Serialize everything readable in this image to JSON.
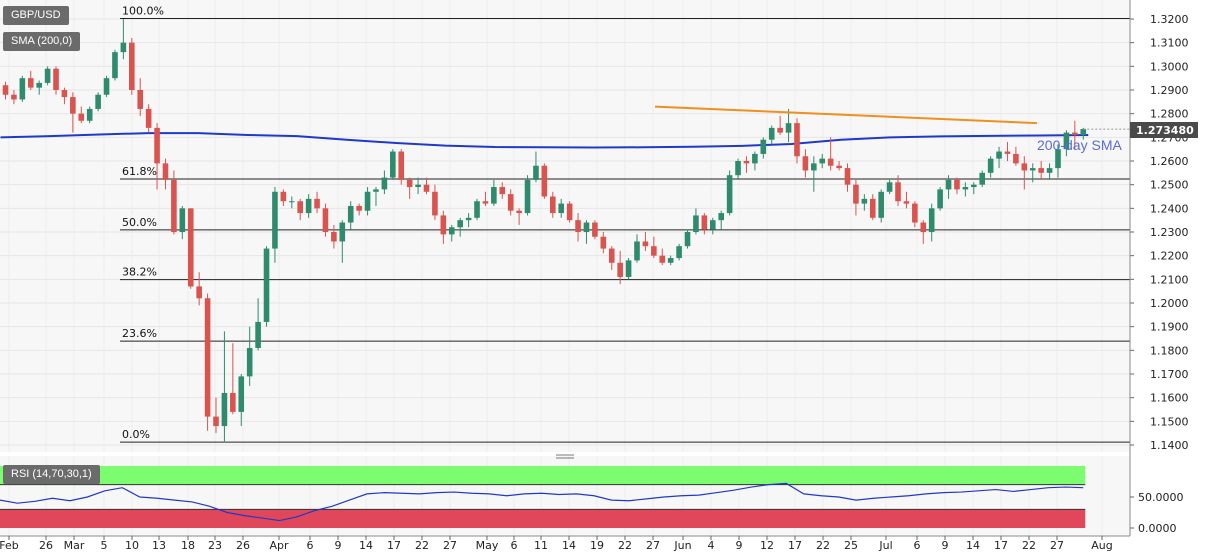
{
  "tags": {
    "symbol": "GBP/USD",
    "indicator": "SMA (200,0)",
    "rsi": "RSI (14,70,30,1)"
  },
  "sma_label": "200-day SMA",
  "price_tag": "1.273480",
  "colors": {
    "up": "#2e8b6e",
    "down": "#d9534f",
    "sma": "#2039c8",
    "trend": "#f0901c",
    "rsi_line": "#2039c8",
    "overbought": "#7cfc6f",
    "oversold": "#e0475a"
  },
  "chart_data": [
    {
      "type": "candlestick",
      "title": "GBP/USD",
      "ylim": [
        1.14,
        1.325
      ],
      "y_ticks": [
        "1.3200",
        "1.3100",
        "1.3000",
        "1.2900",
        "1.2800",
        "1.2700",
        "1.2600",
        "1.2500",
        "1.2400",
        "1.2300",
        "1.2200",
        "1.2100",
        "1.2000",
        "1.1900",
        "1.1800",
        "1.1700",
        "1.1600",
        "1.1500",
        "1.1400"
      ],
      "x_ticks": [
        "Feb",
        "26",
        "Mar",
        "5",
        "10",
        "13",
        "18",
        "23",
        "26",
        "Apr",
        "6",
        "9",
        "14",
        "17",
        "22",
        "27",
        "May",
        "6",
        "11",
        "14",
        "19",
        "22",
        "27",
        "Jun",
        "4",
        "9",
        "12",
        "17",
        "22",
        "25",
        "Jul",
        "6",
        "9",
        "14",
        "17",
        "22",
        "27",
        "Aug"
      ],
      "fibonacci": [
        {
          "label": "100.0%",
          "value": 1.3202
        },
        {
          "label": "61.8%",
          "value": 1.2524
        },
        {
          "label": "50.0%",
          "value": 1.2309
        },
        {
          "label": "38.2%",
          "value": 1.2099
        },
        {
          "label": "23.6%",
          "value": 1.1839
        },
        {
          "label": "0.0%",
          "value": 1.1412
        }
      ],
      "last_price": 1.27348,
      "candles": [
        [
          1.292,
          1.2935,
          1.286,
          1.288
        ],
        [
          1.288,
          1.29,
          1.284,
          1.286
        ],
        [
          1.286,
          1.296,
          1.285,
          1.295
        ],
        [
          1.295,
          1.298,
          1.29,
          1.291
        ],
        [
          1.291,
          1.294,
          1.288,
          1.293
        ],
        [
          1.293,
          1.3,
          1.292,
          1.299
        ],
        [
          1.299,
          1.3,
          1.288,
          1.29
        ],
        [
          1.29,
          1.291,
          1.284,
          1.287
        ],
        [
          1.287,
          1.289,
          1.272,
          1.28
        ],
        [
          1.28,
          1.283,
          1.276,
          1.277
        ],
        [
          1.277,
          1.283,
          1.276,
          1.282
        ],
        [
          1.282,
          1.289,
          1.281,
          1.288
        ],
        [
          1.288,
          1.296,
          1.287,
          1.295
        ],
        [
          1.295,
          1.307,
          1.294,
          1.306
        ],
        [
          1.306,
          1.32,
          1.303,
          1.31
        ],
        [
          1.31,
          1.312,
          1.288,
          1.29
        ],
        [
          1.29,
          1.295,
          1.279,
          1.282
        ],
        [
          1.282,
          1.284,
          1.272,
          1.274
        ],
        [
          1.274,
          1.276,
          1.248,
          1.259
        ],
        [
          1.259,
          1.261,
          1.248,
          1.252
        ],
        [
          1.252,
          1.256,
          1.229,
          1.23
        ],
        [
          1.23,
          1.241,
          1.227,
          1.24
        ],
        [
          1.24,
          1.24,
          1.206,
          1.207
        ],
        [
          1.207,
          1.213,
          1.199,
          1.202
        ],
        [
          1.202,
          1.204,
          1.146,
          1.152
        ],
        [
          1.152,
          1.16,
          1.145,
          1.148
        ],
        [
          1.148,
          1.188,
          1.141,
          1.162
        ],
        [
          1.162,
          1.183,
          1.153,
          1.154
        ],
        [
          1.154,
          1.17,
          1.148,
          1.169
        ],
        [
          1.169,
          1.19,
          1.165,
          1.181
        ],
        [
          1.181,
          1.202,
          1.18,
          1.192
        ],
        [
          1.192,
          1.224,
          1.19,
          1.223
        ],
        [
          1.223,
          1.249,
          1.217,
          1.247
        ],
        [
          1.247,
          1.248,
          1.241,
          1.243
        ],
        [
          1.243,
          1.245,
          1.24,
          1.243
        ],
        [
          1.243,
          1.244,
          1.235,
          1.238
        ],
        [
          1.238,
          1.246,
          1.236,
          1.244
        ],
        [
          1.244,
          1.247,
          1.238,
          1.24
        ],
        [
          1.24,
          1.242,
          1.228,
          1.23
        ],
        [
          1.23,
          1.233,
          1.223,
          1.226
        ],
        [
          1.226,
          1.235,
          1.217,
          1.234
        ],
        [
          1.234,
          1.243,
          1.231,
          1.241
        ],
        [
          1.241,
          1.242,
          1.237,
          1.239
        ],
        [
          1.239,
          1.249,
          1.237,
          1.247
        ],
        [
          1.247,
          1.249,
          1.241,
          1.248
        ],
        [
          1.248,
          1.256,
          1.246,
          1.253
        ],
        [
          1.253,
          1.265,
          1.252,
          1.264
        ],
        [
          1.264,
          1.265,
          1.25,
          1.252
        ],
        [
          1.252,
          1.253,
          1.244,
          1.249
        ],
        [
          1.249,
          1.253,
          1.246,
          1.25
        ],
        [
          1.25,
          1.253,
          1.246,
          1.247
        ],
        [
          1.247,
          1.25,
          1.235,
          1.237
        ],
        [
          1.237,
          1.239,
          1.225,
          1.229
        ],
        [
          1.229,
          1.233,
          1.226,
          1.232
        ],
        [
          1.232,
          1.236,
          1.228,
          1.235
        ],
        [
          1.235,
          1.238,
          1.232,
          1.236
        ],
        [
          1.236,
          1.244,
          1.235,
          1.243
        ],
        [
          1.243,
          1.247,
          1.241,
          1.242
        ],
        [
          1.242,
          1.252,
          1.241,
          1.249
        ],
        [
          1.249,
          1.251,
          1.244,
          1.246
        ],
        [
          1.246,
          1.248,
          1.237,
          1.239
        ],
        [
          1.239,
          1.24,
          1.233,
          1.238
        ],
        [
          1.238,
          1.254,
          1.237,
          1.252
        ],
        [
          1.252,
          1.264,
          1.251,
          1.258
        ],
        [
          1.258,
          1.259,
          1.244,
          1.245
        ],
        [
          1.245,
          1.247,
          1.236,
          1.238
        ],
        [
          1.238,
          1.244,
          1.236,
          1.242
        ],
        [
          1.242,
          1.243,
          1.234,
          1.235
        ],
        [
          1.235,
          1.238,
          1.226,
          1.23
        ],
        [
          1.23,
          1.235,
          1.225,
          1.234
        ],
        [
          1.234,
          1.235,
          1.227,
          1.228
        ],
        [
          1.228,
          1.23,
          1.221,
          1.223
        ],
        [
          1.223,
          1.224,
          1.214,
          1.217
        ],
        [
          1.217,
          1.222,
          1.208,
          1.211
        ],
        [
          1.211,
          1.219,
          1.21,
          1.218
        ],
        [
          1.218,
          1.229,
          1.217,
          1.226
        ],
        [
          1.226,
          1.23,
          1.222,
          1.224
        ],
        [
          1.224,
          1.228,
          1.219,
          1.22
        ],
        [
          1.22,
          1.223,
          1.216,
          1.217
        ],
        [
          1.217,
          1.22,
          1.216,
          1.219
        ],
        [
          1.219,
          1.225,
          1.218,
          1.224
        ],
        [
          1.224,
          1.231,
          1.223,
          1.23
        ],
        [
          1.23,
          1.24,
          1.229,
          1.237
        ],
        [
          1.237,
          1.238,
          1.229,
          1.231
        ],
        [
          1.231,
          1.236,
          1.229,
          1.235
        ],
        [
          1.235,
          1.239,
          1.231,
          1.238
        ],
        [
          1.238,
          1.256,
          1.237,
          1.254
        ],
        [
          1.254,
          1.261,
          1.252,
          1.26
        ],
        [
          1.26,
          1.262,
          1.255,
          1.259
        ],
        [
          1.259,
          1.264,
          1.256,
          1.263
        ],
        [
          1.263,
          1.27,
          1.261,
          1.269
        ],
        [
          1.269,
          1.275,
          1.267,
          1.274
        ],
        [
          1.274,
          1.279,
          1.271,
          1.272
        ],
        [
          1.272,
          1.282,
          1.268,
          1.276
        ],
        [
          1.276,
          1.278,
          1.259,
          1.262
        ],
        [
          1.262,
          1.265,
          1.253,
          1.256
        ],
        [
          1.256,
          1.262,
          1.247,
          1.259
        ],
        [
          1.259,
          1.263,
          1.257,
          1.261
        ],
        [
          1.261,
          1.27,
          1.256,
          1.258
        ],
        [
          1.258,
          1.26,
          1.256,
          1.257
        ],
        [
          1.257,
          1.259,
          1.247,
          1.25
        ],
        [
          1.25,
          1.252,
          1.237,
          1.242
        ],
        [
          1.242,
          1.246,
          1.239,
          1.244
        ],
        [
          1.244,
          1.246,
          1.235,
          1.236
        ],
        [
          1.236,
          1.248,
          1.234,
          1.247
        ],
        [
          1.247,
          1.252,
          1.246,
          1.251
        ],
        [
          1.251,
          1.254,
          1.241,
          1.243
        ],
        [
          1.243,
          1.247,
          1.24,
          1.242
        ],
        [
          1.242,
          1.243,
          1.232,
          1.234
        ],
        [
          1.234,
          1.235,
          1.225,
          1.23
        ],
        [
          1.23,
          1.242,
          1.226,
          1.24
        ],
        [
          1.24,
          1.249,
          1.239,
          1.248
        ],
        [
          1.248,
          1.254,
          1.244,
          1.252
        ],
        [
          1.252,
          1.253,
          1.246,
          1.248
        ],
        [
          1.248,
          1.251,
          1.245,
          1.249
        ],
        [
          1.249,
          1.251,
          1.246,
          1.25
        ],
        [
          1.25,
          1.256,
          1.249,
          1.255
        ],
        [
          1.255,
          1.262,
          1.253,
          1.261
        ],
        [
          1.261,
          1.266,
          1.257,
          1.264
        ],
        [
          1.264,
          1.268,
          1.26,
          1.263
        ],
        [
          1.263,
          1.266,
          1.258,
          1.259
        ],
        [
          1.259,
          1.262,
          1.248,
          1.256
        ],
        [
          1.256,
          1.259,
          1.251,
          1.257
        ],
        [
          1.257,
          1.26,
          1.252,
          1.255
        ],
        [
          1.255,
          1.259,
          1.252,
          1.257
        ],
        [
          1.257,
          1.267,
          1.253,
          1.265
        ],
        [
          1.265,
          1.273,
          1.262,
          1.272
        ],
        [
          1.272,
          1.277,
          1.265,
          1.271
        ],
        [
          1.271,
          1.274,
          1.269,
          1.2735
        ]
      ],
      "sma_200": [
        1.27,
        1.2705,
        1.2712,
        1.2718,
        1.2718,
        1.271,
        1.2705,
        1.269,
        1.2676,
        1.2665,
        1.2659,
        1.2658,
        1.2657,
        1.2658,
        1.266,
        1.2664,
        1.2672,
        1.269,
        1.27,
        1.2704,
        1.2706,
        1.2708,
        1.271
      ],
      "trendline": [
        [
          1.283,
          0
        ],
        [
          1.276,
          1
        ]
      ],
      "rsi": {
        "ylim": [
          0,
          100
        ],
        "y_ticks": [
          "50.0000",
          "0.0000"
        ],
        "overbought": 70,
        "oversold": 30,
        "values": [
          45,
          40,
          43,
          48,
          44,
          50,
          60,
          65,
          50,
          48,
          45,
          42,
          35,
          25,
          20,
          16,
          12,
          18,
          28,
          35,
          45,
          55,
          57,
          56,
          55,
          57,
          58,
          56,
          55,
          52,
          55,
          56,
          54,
          55,
          52,
          45,
          44,
          47,
          50,
          52,
          53,
          57,
          61,
          66,
          70,
          72,
          55,
          52,
          50,
          45,
          48,
          50,
          52,
          55,
          57,
          58,
          60,
          62,
          59,
          62,
          65,
          66,
          65
        ]
      }
    }
  ]
}
